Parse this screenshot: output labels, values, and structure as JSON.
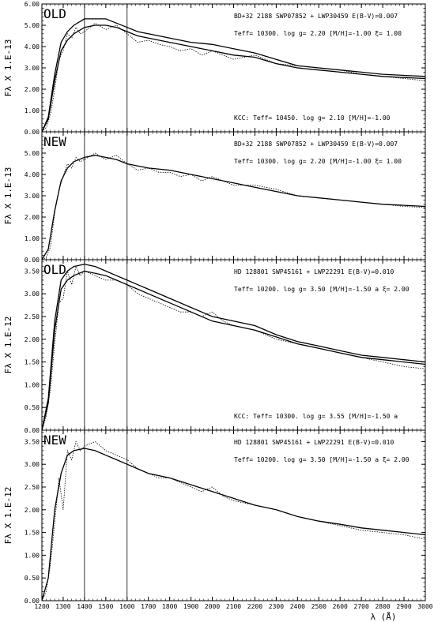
{
  "chart_data": {
    "type": "line",
    "xlim": [
      1200,
      3000
    ],
    "x_ticks": [
      "1200",
      "1300",
      "1400",
      "1500",
      "1600",
      "1700",
      "1800",
      "1900",
      "2000",
      "2100",
      "2200",
      "2300",
      "2400",
      "2500",
      "2600",
      "2700",
      "2800",
      "2900",
      "3000"
    ],
    "xlabel": "λ (Å)",
    "reference_lines_x": [
      1400,
      1600
    ],
    "panels": [
      {
        "tag": "OLD",
        "ylabel": "Fλ X   1.E-13",
        "ylim": [
          0,
          6
        ],
        "y_ticks": [
          "0.00",
          "1.00",
          "2.00",
          "3.00",
          "4.00",
          "5.00",
          "6.00"
        ],
        "info_lines": [
          "BD+32 2188  SWP07852 + LWP30459 E(B-V)=0.007",
          "Teff= 10300.  log g= 2.20 [M/H]=-1.00   ξ= 1.00"
        ],
        "footnote": "KCC: Teff= 10450. log g= 2.10 [M/H]=-1.00",
        "model_count": 2,
        "series": [
          {
            "name": "observed",
            "x": [
              1200,
              1220,
              1240,
              1260,
              1280,
              1300,
              1320,
              1340,
              1360,
              1380,
              1400,
              1450,
              1500,
              1550,
              1600,
              1650,
              1700,
              1750,
              1800,
              1850,
              1900,
              1950,
              2000,
              2100,
              2200,
              2300,
              2400,
              2500,
              2600,
              2700,
              2800,
              2900,
              3000
            ],
            "y": [
              0.0,
              0.2,
              0.8,
              2.0,
              3.4,
              3.8,
              4.6,
              4.4,
              4.9,
              4.6,
              4.7,
              5.1,
              4.8,
              5.0,
              4.6,
              4.2,
              4.3,
              4.1,
              4.0,
              3.8,
              3.9,
              3.6,
              3.8,
              3.4,
              3.6,
              3.2,
              3.1,
              3.0,
              2.9,
              2.7,
              2.6,
              2.5,
              2.4
            ]
          },
          {
            "name": "model",
            "x": [
              1200,
              1230,
              1260,
              1290,
              1320,
              1350,
              1400,
              1450,
              1500,
              1550,
              1600,
              1650,
              1700,
              1800,
              1900,
              2000,
              2100,
              2200,
              2300,
              2400,
              2500,
              2600,
              2700,
              2800,
              2900,
              3000
            ],
            "y": [
              0.0,
              0.6,
              2.4,
              3.8,
              4.3,
              4.6,
              4.9,
              5.0,
              5.0,
              4.9,
              4.7,
              4.5,
              4.4,
              4.2,
              4.0,
              3.8,
              3.6,
              3.5,
              3.2,
              3.0,
              2.9,
              2.8,
              2.7,
              2.6,
              2.55,
              2.5
            ]
          },
          {
            "name": "model-kcc",
            "x": [
              1200,
              1230,
              1260,
              1290,
              1320,
              1350,
              1400,
              1450,
              1500,
              1550,
              1600,
              1650,
              1700,
              1800,
              1900,
              2000,
              2100,
              2200,
              2300,
              2400,
              2500,
              2600,
              2700,
              2800,
              2900,
              3000
            ],
            "y": [
              0.0,
              0.7,
              2.7,
              4.2,
              4.7,
              5.0,
              5.3,
              5.3,
              5.3,
              5.1,
              4.9,
              4.7,
              4.6,
              4.4,
              4.2,
              4.1,
              3.9,
              3.7,
              3.4,
              3.1,
              3.0,
              2.9,
              2.8,
              2.7,
              2.65,
              2.6
            ]
          }
        ]
      },
      {
        "tag": "NEW",
        "ylabel": "Fλ X   1.E-13",
        "ylim": [
          0,
          6
        ],
        "y_ticks": [
          "0.00",
          "1.00",
          "2.00",
          "3.00",
          "4.00",
          "5.00"
        ],
        "info_lines": [
          "BD+32 2188  SWP07852 + LWP30459 E(B-V)=0.007",
          "Teff= 10300.  log g= 2.20 [M/H]=-1.00   ξ= 1.00"
        ],
        "footnote": "",
        "model_count": 1,
        "series": [
          {
            "name": "observed",
            "x": [
              1200,
              1220,
              1240,
              1260,
              1280,
              1300,
              1320,
              1340,
              1360,
              1380,
              1400,
              1450,
              1500,
              1550,
              1600,
              1650,
              1700,
              1750,
              1800,
              1850,
              1900,
              1950,
              2000,
              2100,
              2200,
              2300,
              2400,
              2500,
              2600,
              2700,
              2800,
              2900,
              3000
            ],
            "y": [
              0.0,
              0.1,
              0.6,
              2.2,
              3.3,
              3.9,
              4.5,
              4.3,
              4.8,
              4.6,
              4.7,
              5.0,
              4.7,
              4.9,
              4.5,
              4.2,
              4.3,
              4.1,
              4.1,
              3.9,
              4.0,
              3.7,
              3.9,
              3.5,
              3.5,
              3.3,
              3.0,
              2.9,
              2.8,
              2.7,
              2.6,
              2.5,
              2.45
            ]
          },
          {
            "name": "model",
            "x": [
              1200,
              1230,
              1260,
              1290,
              1320,
              1350,
              1400,
              1450,
              1500,
              1550,
              1600,
              1650,
              1700,
              1800,
              1900,
              2000,
              2100,
              2200,
              2300,
              2400,
              2500,
              2600,
              2700,
              2800,
              2900,
              3000
            ],
            "y": [
              0.0,
              0.5,
              2.3,
              3.7,
              4.3,
              4.6,
              4.8,
              4.9,
              4.8,
              4.7,
              4.5,
              4.4,
              4.3,
              4.2,
              4.0,
              3.8,
              3.6,
              3.4,
              3.2,
              3.0,
              2.9,
              2.8,
              2.7,
              2.6,
              2.55,
              2.5
            ]
          }
        ]
      },
      {
        "tag": "OLD",
        "ylabel": "Fλ X   1.E-12",
        "ylim": [
          0,
          3.75
        ],
        "y_ticks": [
          "0.00",
          "0.50",
          "1.00",
          "1.50",
          "2.00",
          "2.50",
          "3.00",
          "3.50"
        ],
        "info_lines": [
          "HD 128801  SWP45161 + LWP22291 E(B-V)=0.010",
          "Teff= 10200.  log g= 3.50 [M/H]=-1.50 a  ξ= 2.00"
        ],
        "footnote": "KCC: Teff= 10300. log g= 3.55 [M/H]=-1.50 a",
        "model_count": 2,
        "series": [
          {
            "name": "observed",
            "x": [
              1200,
              1220,
              1240,
              1260,
              1280,
              1300,
              1320,
              1340,
              1360,
              1380,
              1400,
              1450,
              1500,
              1550,
              1600,
              1650,
              1700,
              1750,
              1800,
              1850,
              1900,
              1950,
              2000,
              2050,
              2100,
              2200,
              2300,
              2400,
              2500,
              2600,
              2700,
              2800,
              2900,
              3000
            ],
            "y": [
              0.0,
              0.3,
              0.9,
              1.9,
              2.8,
              2.9,
              3.5,
              3.2,
              3.6,
              3.4,
              3.5,
              3.4,
              3.3,
              3.3,
              3.2,
              3.0,
              2.9,
              2.8,
              2.7,
              2.6,
              2.6,
              2.5,
              2.6,
              2.4,
              2.3,
              2.2,
              2.0,
              1.9,
              1.8,
              1.7,
              1.6,
              1.5,
              1.4,
              1.35
            ]
          },
          {
            "name": "model",
            "x": [
              1200,
              1230,
              1260,
              1290,
              1320,
              1350,
              1400,
              1450,
              1500,
              1550,
              1600,
              1650,
              1700,
              1800,
              1900,
              2000,
              2100,
              2200,
              2300,
              2400,
              2500,
              2600,
              2700,
              2800,
              2900,
              3000
            ],
            "y": [
              0.0,
              0.6,
              2.2,
              3.1,
              3.3,
              3.4,
              3.5,
              3.45,
              3.4,
              3.3,
              3.2,
              3.1,
              3.0,
              2.8,
              2.6,
              2.4,
              2.3,
              2.2,
              2.05,
              1.9,
              1.8,
              1.7,
              1.6,
              1.55,
              1.5,
              1.45
            ]
          },
          {
            "name": "model-kcc",
            "x": [
              1200,
              1230,
              1260,
              1290,
              1320,
              1350,
              1400,
              1450,
              1500,
              1550,
              1600,
              1650,
              1700,
              1800,
              1900,
              2000,
              2100,
              2200,
              2300,
              2400,
              2500,
              2600,
              2700,
              2800,
              2900,
              3000
            ],
            "y": [
              0.0,
              0.7,
              2.4,
              3.3,
              3.5,
              3.6,
              3.65,
              3.6,
              3.5,
              3.4,
              3.3,
              3.2,
              3.1,
              2.9,
              2.7,
              2.5,
              2.4,
              2.3,
              2.1,
              1.95,
              1.85,
              1.75,
              1.65,
              1.6,
              1.55,
              1.5
            ]
          }
        ]
      },
      {
        "tag": "NEW",
        "ylabel": "Fλ X   1.E-12",
        "ylim": [
          0,
          3.75
        ],
        "y_ticks": [
          "0.00",
          "0.50",
          "1.00",
          "1.50",
          "2.00",
          "2.50",
          "3.00",
          "3.50"
        ],
        "info_lines": [
          "HD 128801  SWP45161 + LWP22291 E(B-V)=0.010",
          "Teff= 10200.  log g= 3.50 [M/H]=-1.50 a  ξ= 2.00"
        ],
        "footnote": "",
        "model_count": 1,
        "series": [
          {
            "name": "observed",
            "x": [
              1200,
              1220,
              1240,
              1260,
              1280,
              1300,
              1320,
              1340,
              1360,
              1380,
              1400,
              1450,
              1500,
              1550,
              1600,
              1650,
              1700,
              1750,
              1800,
              1850,
              1900,
              1950,
              2000,
              2050,
              2100,
              2200,
              2300,
              2400,
              2500,
              2600,
              2700,
              2800,
              2900,
              3000
            ],
            "y": [
              0.0,
              0.2,
              0.8,
              1.7,
              2.7,
              2.0,
              3.3,
              3.1,
              3.5,
              3.3,
              3.4,
              3.5,
              3.3,
              3.2,
              3.1,
              2.9,
              2.8,
              2.7,
              2.7,
              2.6,
              2.5,
              2.4,
              2.5,
              2.3,
              2.2,
              2.1,
              2.0,
              1.85,
              1.75,
              1.65,
              1.55,
              1.5,
              1.45,
              1.35
            ]
          },
          {
            "name": "model",
            "x": [
              1200,
              1230,
              1260,
              1290,
              1320,
              1350,
              1400,
              1450,
              1500,
              1550,
              1600,
              1650,
              1700,
              1800,
              1900,
              2000,
              2100,
              2200,
              2300,
              2400,
              2500,
              2600,
              2700,
              2800,
              2900,
              3000
            ],
            "y": [
              0.0,
              0.5,
              2.0,
              2.8,
              3.2,
              3.3,
              3.35,
              3.3,
              3.2,
              3.1,
              3.0,
              2.9,
              2.8,
              2.7,
              2.55,
              2.4,
              2.25,
              2.1,
              2.0,
              1.85,
              1.75,
              1.68,
              1.6,
              1.55,
              1.5,
              1.45
            ]
          }
        ]
      }
    ]
  }
}
